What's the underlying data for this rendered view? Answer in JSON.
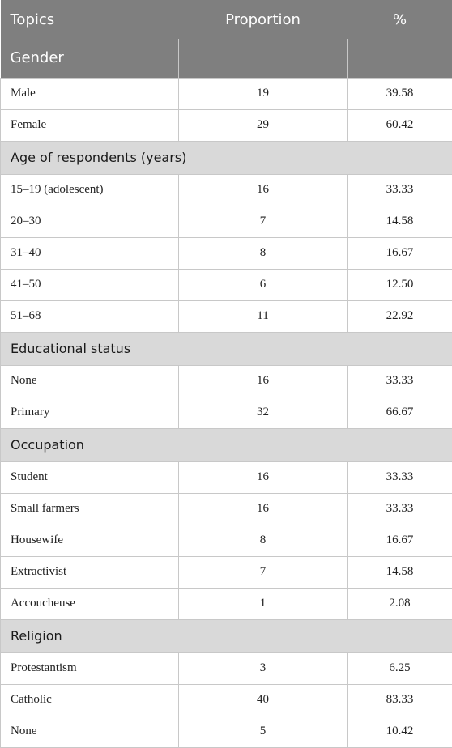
{
  "table": {
    "headers": {
      "topics": "Topics",
      "proportion": "Proportion",
      "percent": "%"
    },
    "sections": [
      {
        "title": "Gender",
        "rows": [
          {
            "label": "Male",
            "proportion": "19",
            "percent": "39.58"
          },
          {
            "label": "Female",
            "proportion": "29",
            "percent": "60.42"
          }
        ]
      },
      {
        "title": "Age of respondents (years)",
        "rows": [
          {
            "label": "15–19 (adolescent)",
            "proportion": "16",
            "percent": "33.33"
          },
          {
            "label": "20–30",
            "proportion": "7",
            "percent": "14.58"
          },
          {
            "label": "31–40",
            "proportion": "8",
            "percent": "16.67"
          },
          {
            "label": "41–50",
            "proportion": "6",
            "percent": "12.50"
          },
          {
            "label": "51–68",
            "proportion": "11",
            "percent": "22.92"
          }
        ]
      },
      {
        "title": "Educational status",
        "rows": [
          {
            "label": "None",
            "proportion": "16",
            "percent": "33.33"
          },
          {
            "label": "Primary",
            "proportion": "32",
            "percent": "66.67"
          }
        ]
      },
      {
        "title": "Occupation",
        "rows": [
          {
            "label": "Student",
            "proportion": "16",
            "percent": "33.33"
          },
          {
            "label": "Small farmers",
            "proportion": "16",
            "percent": "33.33"
          },
          {
            "label": "Housewife",
            "proportion": "8",
            "percent": "16.67"
          },
          {
            "label": "Extractivist",
            "proportion": "7",
            "percent": "14.58"
          },
          {
            "label": "Accoucheuse",
            "proportion": "1",
            "percent": "2.08"
          }
        ]
      },
      {
        "title": "Religion",
        "rows": [
          {
            "label": "Protestantism",
            "proportion": "3",
            "percent": "6.25"
          },
          {
            "label": "Catholic",
            "proportion": "40",
            "percent": "83.33"
          },
          {
            "label": "None",
            "proportion": "5",
            "percent": "10.42"
          }
        ]
      }
    ]
  }
}
